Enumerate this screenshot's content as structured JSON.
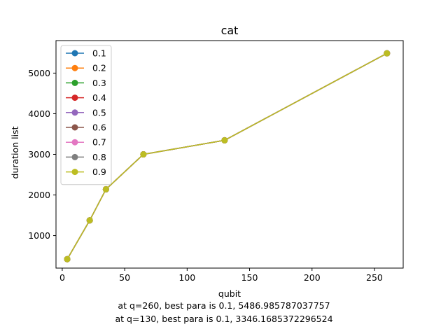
{
  "chart_data": {
    "type": "line",
    "title": "cat",
    "xlabel": "qubit",
    "ylabel": "duration list",
    "xlim": [
      -5,
      273
    ],
    "ylim": [
      200,
      5800
    ],
    "xticks": [
      0,
      50,
      100,
      150,
      200,
      250
    ],
    "yticks": [
      1000,
      2000,
      3000,
      4000,
      5000
    ],
    "grid": false,
    "legend_position": "upper-left",
    "x": [
      4,
      22,
      35,
      65,
      130,
      260
    ],
    "series": [
      {
        "name": "0.1",
        "color": "#1f77b4",
        "values": [
          420,
          1375,
          2140,
          3000,
          3346.17,
          5486.99
        ]
      },
      {
        "name": "0.2",
        "color": "#ff7f0e",
        "values": [
          420,
          1375,
          2140,
          3000,
          3346.17,
          5486.99
        ]
      },
      {
        "name": "0.3",
        "color": "#2ca02c",
        "values": [
          420,
          1375,
          2140,
          3000,
          3346.17,
          5486.99
        ]
      },
      {
        "name": "0.4",
        "color": "#d62728",
        "values": [
          420,
          1375,
          2140,
          3000,
          3346.17,
          5486.99
        ]
      },
      {
        "name": "0.5",
        "color": "#9467bd",
        "values": [
          420,
          1375,
          2140,
          3000,
          3346.17,
          5486.99
        ]
      },
      {
        "name": "0.6",
        "color": "#8c564b",
        "values": [
          420,
          1375,
          2140,
          3000,
          3346.17,
          5486.99
        ]
      },
      {
        "name": "0.7",
        "color": "#e377c2",
        "values": [
          420,
          1375,
          2140,
          3000,
          3346.17,
          5486.99
        ]
      },
      {
        "name": "0.8",
        "color": "#7f7f7f",
        "values": [
          420,
          1375,
          2140,
          3000,
          3346.17,
          5486.99
        ]
      },
      {
        "name": "0.9",
        "color": "#bcbd22",
        "values": [
          420,
          1375,
          2140,
          3000,
          3346.17,
          5486.99
        ]
      }
    ]
  },
  "captions": {
    "line1": "at q=260, best para is 0.1, 5486.985787037757",
    "line2": "at q=130, best para is 0.1, 3346.1685372296524"
  }
}
